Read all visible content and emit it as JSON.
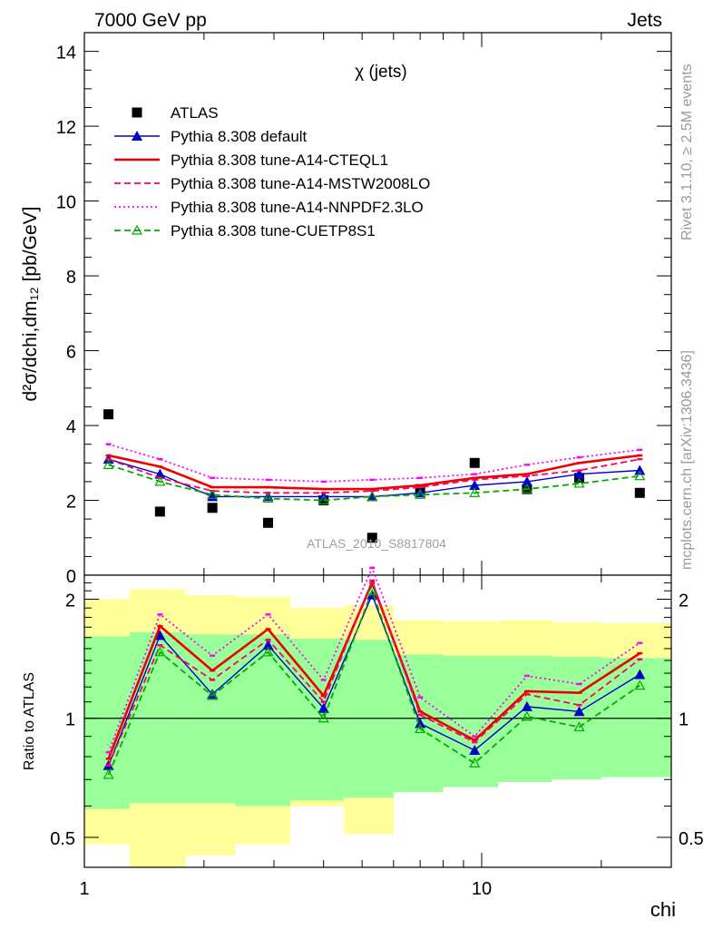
{
  "header": {
    "left": "7000 GeV pp",
    "right": "Jets"
  },
  "side_text": {
    "top": "Rivet 3.1.10, ≥ 2.5M events",
    "bottom": "mcplots.cern.ch [arXiv:1306.3436]"
  },
  "chart_data": [
    {
      "type": "scatter",
      "title": "χ (jets)",
      "ylabel": "d²σ/dchi,dm₁₂ [pb/GeV]",
      "xlabel": "chi",
      "xscale": "log",
      "xlim": [
        1,
        30
      ],
      "ylim": [
        0,
        14.5
      ],
      "yticks": [
        0,
        2,
        4,
        6,
        8,
        10,
        12,
        14
      ],
      "xticks": [
        1,
        10
      ],
      "watermark": "ATLAS_2010_S8817804",
      "x": [
        1.15,
        1.55,
        2.1,
        2.9,
        4.0,
        5.3,
        7.0,
        9.6,
        13.0,
        17.6,
        25.0
      ],
      "series": [
        {
          "name": "ATLAS",
          "color": "#000000",
          "marker": "square",
          "line": "none",
          "values": [
            4.3,
            1.7,
            1.8,
            1.4,
            2.0,
            1.0,
            2.3,
            3.0,
            2.3,
            2.6,
            2.2
          ]
        },
        {
          "name": "Pythia 8.308 default",
          "color": "#0000cc",
          "marker": "triangle",
          "line": "solid",
          "values": [
            3.1,
            2.7,
            2.1,
            2.1,
            2.1,
            2.1,
            2.2,
            2.4,
            2.5,
            2.7,
            2.8
          ]
        },
        {
          "name": "Pythia 8.308 tune-A14-CTEQL1",
          "color": "#ee0000",
          "marker": "none",
          "line": "solid-thick",
          "values": [
            3.2,
            2.9,
            2.35,
            2.35,
            2.3,
            2.3,
            2.4,
            2.6,
            2.7,
            3.0,
            3.2
          ]
        },
        {
          "name": "Pythia 8.308 tune-A14-MSTW2008LO",
          "color": "#ff0066",
          "marker": "none",
          "line": "dashed",
          "values": [
            3.1,
            2.6,
            2.25,
            2.2,
            2.2,
            2.25,
            2.35,
            2.55,
            2.65,
            2.8,
            3.1
          ]
        },
        {
          "name": "Pythia 8.308 tune-A14-NNPDF2.3LO",
          "color": "#ff00ff",
          "marker": "none",
          "line": "dotted",
          "values": [
            3.5,
            3.1,
            2.6,
            2.55,
            2.5,
            2.55,
            2.6,
            2.7,
            2.95,
            3.15,
            3.35
          ]
        },
        {
          "name": "Pythia 8.308 tune-CUETP8S1",
          "color": "#00aa00",
          "marker": "open-triangle",
          "line": "dashed",
          "values": [
            2.95,
            2.5,
            2.15,
            2.05,
            2.0,
            2.1,
            2.15,
            2.2,
            2.3,
            2.45,
            2.65
          ]
        }
      ]
    },
    {
      "type": "scatter",
      "ylabel": "Ratio to ATLAS",
      "xlabel": "chi",
      "xscale": "log",
      "yscale": "log",
      "xlim": [
        1,
        30
      ],
      "ylim": [
        0.42,
        2.3
      ],
      "yticks": [
        0.5,
        1,
        2
      ],
      "xticks": [
        1,
        10
      ],
      "x": [
        1.15,
        1.55,
        2.1,
        2.9,
        4.0,
        5.3,
        7.0,
        9.6,
        13.0,
        17.6,
        25.0
      ],
      "bin_edges": [
        1.0,
        1.3,
        1.8,
        2.4,
        3.3,
        4.5,
        6.0,
        8.0,
        11.0,
        15.0,
        20.0,
        30.0
      ],
      "band_1sigma": {
        "color": "#99ff99",
        "low": [
          0.59,
          0.61,
          0.61,
          0.6,
          0.62,
          0.63,
          0.65,
          0.67,
          0.69,
          0.7,
          0.71
        ],
        "high": [
          1.61,
          1.65,
          1.63,
          1.63,
          1.59,
          1.58,
          1.45,
          1.44,
          1.44,
          1.43,
          1.42
        ]
      },
      "band_2sigma": {
        "color": "#ffff99",
        "low": [
          0.48,
          0.37,
          0.45,
          0.48,
          0.6,
          0.51,
          0.65,
          0.69,
          0.69,
          0.7,
          0.71
        ],
        "high": [
          2.0,
          2.12,
          2.05,
          2.03,
          1.9,
          1.93,
          1.77,
          1.76,
          1.77,
          1.75,
          1.74
        ]
      },
      "reference_line": 1,
      "series": [
        {
          "name": "Pythia 8.308 default",
          "color": "#0000cc",
          "marker": "triangle",
          "line": "solid",
          "values": [
            0.76,
            1.62,
            1.15,
            1.53,
            1.06,
            2.05,
            0.97,
            0.83,
            1.07,
            1.04,
            1.29
          ]
        },
        {
          "name": "Pythia 8.308 tune-A14-CTEQL1",
          "color": "#ee0000",
          "marker": "none",
          "line": "solid-thick",
          "values": [
            0.79,
            1.71,
            1.32,
            1.68,
            1.14,
            2.2,
            1.04,
            0.88,
            1.17,
            1.16,
            1.46
          ]
        },
        {
          "name": "Pythia 8.308 tune-A14-MSTW2008LO",
          "color": "#ff0066",
          "marker": "none",
          "line": "dashed",
          "values": [
            0.76,
            1.53,
            1.25,
            1.58,
            1.1,
            2.23,
            1.02,
            0.87,
            1.15,
            1.08,
            1.41
          ]
        },
        {
          "name": "Pythia 8.308 tune-A14-NNPDF2.3LO",
          "color": "#ff00ff",
          "marker": "none",
          "line": "dotted",
          "values": [
            0.82,
            1.83,
            1.44,
            1.83,
            1.25,
            2.4,
            1.13,
            0.9,
            1.28,
            1.22,
            1.55
          ]
        },
        {
          "name": "Pythia 8.308 tune-CUETP8S1",
          "color": "#00aa00",
          "marker": "open-triangle",
          "line": "dashed",
          "values": [
            0.72,
            1.47,
            1.14,
            1.47,
            1.0,
            2.1,
            0.94,
            0.77,
            1.01,
            0.95,
            1.21
          ]
        }
      ]
    }
  ]
}
